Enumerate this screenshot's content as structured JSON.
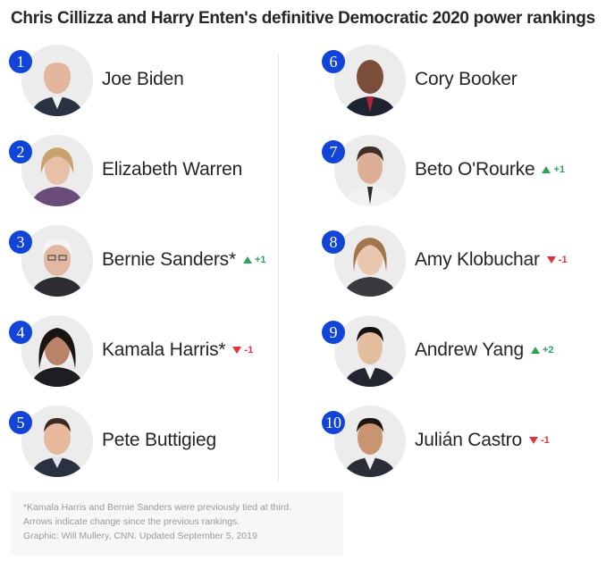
{
  "title": "Chris Cillizza and Harry Enten's definitive Democratic 2020 power rankings",
  "candidates": [
    {
      "rank": "1",
      "name": "Joe Biden",
      "change": ""
    },
    {
      "rank": "2",
      "name": "Elizabeth Warren",
      "change": ""
    },
    {
      "rank": "3",
      "name": "Bernie Sanders*",
      "change": "+1",
      "direction": "up"
    },
    {
      "rank": "4",
      "name": "Kamala Harris*",
      "change": "-1",
      "direction": "down"
    },
    {
      "rank": "5",
      "name": "Pete Buttigieg",
      "change": ""
    },
    {
      "rank": "6",
      "name": "Cory Booker",
      "change": ""
    },
    {
      "rank": "7",
      "name": "Beto O'Rourke",
      "change": "+1",
      "direction": "up"
    },
    {
      "rank": "8",
      "name": "Amy Klobuchar",
      "change": "-1",
      "direction": "down"
    },
    {
      "rank": "9",
      "name": "Andrew Yang",
      "change": "+2",
      "direction": "up"
    },
    {
      "rank": "10",
      "name": "Julián Castro",
      "change": "-1",
      "direction": "down"
    }
  ],
  "footnote": {
    "line1": "*Kamala Harris and Bernie Sanders were previously tied at third.",
    "line2": "Arrows indicate change since the previous rankings.",
    "line3": "Graphic: Will Mullery, CNN. Updated September 5, 2019"
  },
  "colors": {
    "rank_badge": "#1145d8",
    "up": "#2fa35a",
    "down": "#e2333a"
  }
}
